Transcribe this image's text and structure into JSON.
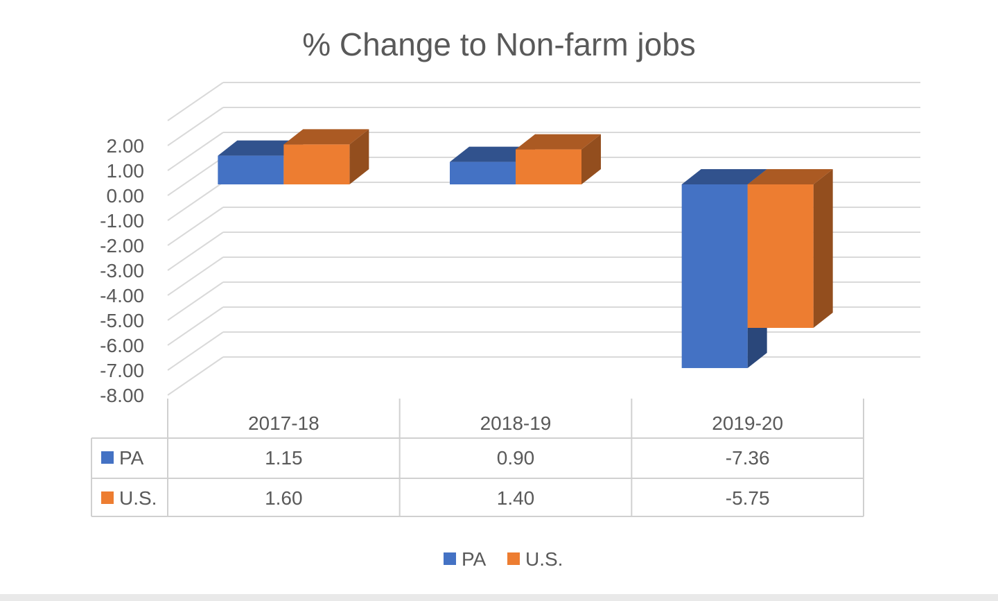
{
  "chart_data": {
    "type": "bar",
    "title": "% Change to Non-farm jobs",
    "categories": [
      "2017-18",
      "2018-19",
      "2019-20"
    ],
    "series": [
      {
        "name": "PA",
        "values": [
          1.15,
          0.9,
          -7.36
        ],
        "display": [
          "1.15",
          "0.90",
          "-7.36"
        ],
        "color": "#4472C4"
      },
      {
        "name": "U.S.",
        "values": [
          1.6,
          1.4,
          -5.75
        ],
        "display": [
          "1.60",
          "1.40",
          "-5.75"
        ],
        "color": "#ED7D31"
      }
    ],
    "yticks": [
      "2.00",
      "1.00",
      "0.00",
      "-1.00",
      "-2.00",
      "-3.00",
      "-4.00",
      "-5.00",
      "-6.00",
      "-7.00",
      "-8.00"
    ],
    "ylim": [
      -8,
      2
    ],
    "grid": true,
    "projection": "3d-clustered-column",
    "data_table": true,
    "legend_position": "bottom",
    "colors": {
      "text": "#595959",
      "grid": "#d9d9d9",
      "table_border": "#d0d0d0"
    }
  }
}
